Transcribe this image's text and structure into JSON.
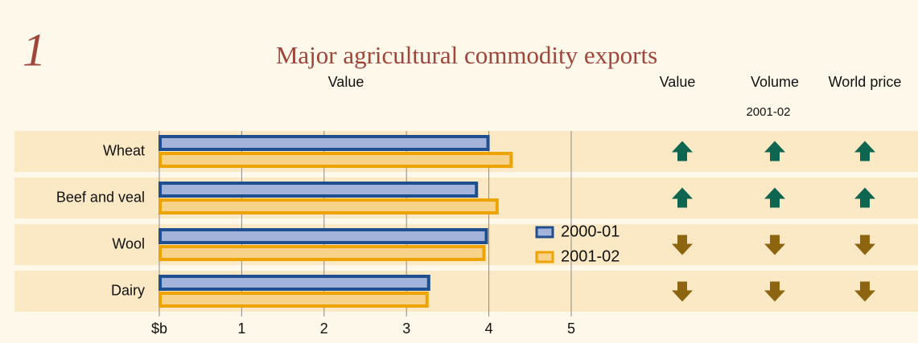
{
  "chart_data": {
    "type": "bar",
    "orientation": "horizontal",
    "figure_number": "1",
    "title": "Major agricultural commodity exports",
    "xlabel": "Value",
    "categories": [
      "Wheat",
      "Beef and veal",
      "Wool",
      "Dairy"
    ],
    "series": [
      {
        "name": "2000-01",
        "color": "#1f4f8f",
        "fill": "#a3b3da",
        "values": [
          3.98,
          3.84,
          3.96,
          3.26
        ]
      },
      {
        "name": "2001-02",
        "color": "#eea400",
        "fill": "#f7d28a",
        "values": [
          4.26,
          4.09,
          3.93,
          3.24
        ]
      }
    ],
    "xlim": [
      0,
      5
    ],
    "xticks": [
      {
        "value": 0,
        "label": "$b"
      },
      1,
      2,
      3,
      4,
      5
    ],
    "grid": true,
    "indicators": {
      "columns": [
        "Value",
        "Volume",
        "World price"
      ],
      "period": "2001-02",
      "colors": {
        "up": "#0e6651",
        "down": "#8d6511"
      },
      "rows": [
        [
          "up",
          "up",
          "up"
        ],
        [
          "up",
          "up",
          "up"
        ],
        [
          "down",
          "down",
          "down"
        ],
        [
          "down",
          "down",
          "down"
        ]
      ]
    }
  }
}
